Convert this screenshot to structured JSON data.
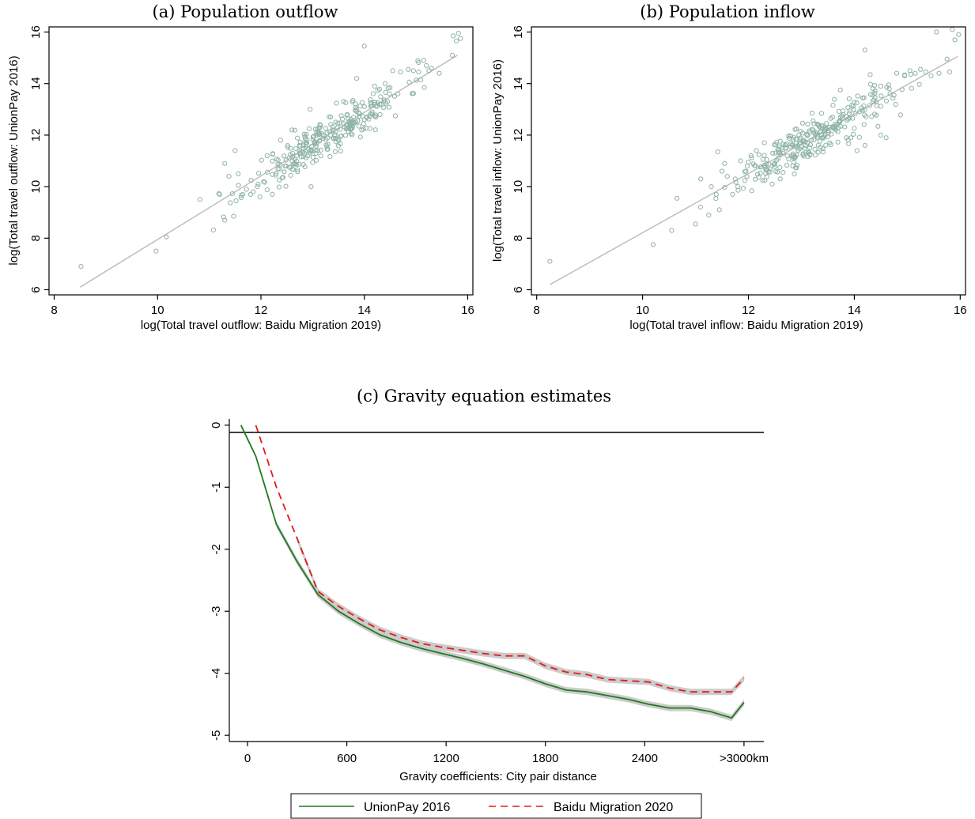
{
  "chart_data": [
    {
      "type": "scatter",
      "title": "(a) Population outflow",
      "xlabel": "log(Total travel outflow: Baidu Migration 2019)",
      "ylabel": "log(Total travel outflow: UnionPay 2016)",
      "xlim": [
        7.9,
        16.1
      ],
      "ylim": [
        5.8,
        16.2
      ],
      "xticks": [
        8,
        10,
        12,
        14,
        16
      ],
      "yticks": [
        6,
        8,
        10,
        12,
        14,
        16
      ],
      "point_color": "#8fb3a8",
      "fit_color": "#bbbbbb",
      "fit_line": {
        "x": [
          8.5,
          15.8
        ],
        "y": [
          6.1,
          15.1
        ]
      },
      "seed": 11,
      "cluster": {
        "x_center": 13.3,
        "x_spread": 0.75,
        "slope": 1.23,
        "intercept": -4.38,
        "noise": 0.6,
        "count": 280
      },
      "points": [
        [
          8.52,
          6.9
        ],
        [
          9.97,
          7.5
        ],
        [
          10.17,
          8.05
        ],
        [
          10.82,
          9.5
        ],
        [
          11.08,
          8.32
        ],
        [
          11.2,
          9.7
        ],
        [
          11.3,
          8.7
        ],
        [
          11.38,
          10.4
        ],
        [
          11.47,
          8.85
        ],
        [
          11.5,
          11.4
        ],
        [
          11.52,
          9.45
        ],
        [
          11.56,
          10.5
        ],
        [
          11.3,
          10.9
        ],
        [
          11.72,
          9.9
        ],
        [
          11.85,
          9.8
        ],
        [
          11.93,
          10.0
        ],
        [
          11.98,
          9.6
        ],
        [
          12.05,
          10.2
        ],
        [
          12.12,
          11.2
        ],
        [
          12.22,
          9.7
        ],
        [
          12.38,
          11.8
        ],
        [
          12.97,
          10.0
        ],
        [
          14.0,
          12.6
        ],
        [
          14.05,
          12.7
        ],
        [
          14.15,
          12.9
        ],
        [
          14.3,
          13.2
        ],
        [
          14.45,
          13.3
        ],
        [
          14.6,
          12.75
        ],
        [
          14.0,
          15.45
        ],
        [
          14.55,
          14.5
        ],
        [
          14.7,
          14.45
        ],
        [
          14.85,
          14.55
        ],
        [
          14.95,
          14.5
        ],
        [
          15.05,
          14.45
        ],
        [
          15.15,
          14.9
        ],
        [
          15.25,
          14.5
        ],
        [
          15.3,
          14.6
        ],
        [
          15.45,
          14.4
        ],
        [
          15.7,
          15.1
        ],
        [
          15.72,
          15.85
        ],
        [
          15.78,
          15.65
        ],
        [
          15.82,
          15.95
        ],
        [
          15.86,
          15.75
        ],
        [
          15.2,
          14.7
        ],
        [
          14.4,
          14.0
        ],
        [
          14.2,
          13.9
        ],
        [
          13.85,
          14.2
        ],
        [
          13.6,
          13.3
        ],
        [
          12.95,
          13.0
        ],
        [
          12.6,
          12.2
        ],
        [
          13.1,
          11.4
        ],
        [
          14.65,
          13.6
        ]
      ]
    },
    {
      "type": "scatter",
      "title": "(b) Population inflow",
      "xlabel": "log(Total travel inflow: Baidu Migration 2019)",
      "ylabel": "log(Total travel inflow: UnionPay 2016)",
      "xlim": [
        7.9,
        16.1
      ],
      "ylim": [
        5.8,
        16.2
      ],
      "xticks": [
        8,
        10,
        12,
        14,
        16
      ],
      "yticks": [
        6,
        8,
        10,
        12,
        14,
        16
      ],
      "point_color": "#8fb3a8",
      "fit_color": "#bbbbbb",
      "fit_line": {
        "x": [
          8.25,
          15.95
        ],
        "y": [
          6.2,
          15.05
        ]
      },
      "seed": 29,
      "cluster": {
        "x_center": 13.1,
        "x_spread": 0.75,
        "slope": 1.15,
        "intercept": -3.3,
        "noise": 0.6,
        "count": 280
      },
      "points": [
        [
          8.25,
          7.1
        ],
        [
          10.2,
          7.75
        ],
        [
          10.55,
          8.3
        ],
        [
          10.65,
          9.55
        ],
        [
          11.0,
          8.55
        ],
        [
          11.1,
          10.3
        ],
        [
          11.25,
          8.9
        ],
        [
          11.3,
          10.0
        ],
        [
          11.42,
          11.35
        ],
        [
          11.45,
          9.1
        ],
        [
          11.5,
          10.6
        ],
        [
          11.55,
          10.9
        ],
        [
          11.6,
          10.4
        ],
        [
          11.7,
          9.7
        ],
        [
          11.75,
          10.3
        ],
        [
          11.8,
          10.0
        ],
        [
          11.85,
          11.0
        ],
        [
          11.95,
          10.6
        ],
        [
          12.05,
          11.2
        ],
        [
          12.15,
          11.4
        ],
        [
          12.3,
          11.7
        ],
        [
          12.45,
          10.1
        ],
        [
          12.6,
          10.3
        ],
        [
          14.35,
          13.8
        ],
        [
          14.5,
          13.9
        ],
        [
          14.65,
          13.95
        ],
        [
          14.8,
          14.4
        ],
        [
          14.95,
          14.3
        ],
        [
          15.05,
          14.5
        ],
        [
          15.15,
          14.4
        ],
        [
          15.25,
          14.55
        ],
        [
          15.35,
          14.45
        ],
        [
          15.45,
          14.3
        ],
        [
          15.55,
          16.0
        ],
        [
          15.6,
          14.4
        ],
        [
          15.75,
          14.95
        ],
        [
          15.8,
          14.45
        ],
        [
          15.85,
          16.1
        ],
        [
          15.9,
          15.7
        ],
        [
          15.97,
          15.9
        ],
        [
          14.2,
          15.3
        ],
        [
          14.3,
          14.35
        ],
        [
          14.5,
          12.0
        ],
        [
          14.6,
          11.9
        ],
        [
          14.75,
          13.55
        ],
        [
          14.2,
          11.6
        ],
        [
          14.05,
          11.4
        ],
        [
          13.85,
          11.9
        ],
        [
          13.65,
          12.2
        ]
      ]
    },
    {
      "type": "line",
      "title": "(c) Gravity equation estimates",
      "xlabel": "Gravity coefficients: City pair distance",
      "ylabel": "",
      "xlim": [
        -110,
        3120
      ],
      "ylim": [
        -5.1,
        0.1
      ],
      "xticks": [
        0,
        600,
        1200,
        1800,
        2400
      ],
      "xtick_labels": [
        "0",
        "600",
        "1200",
        "1800",
        "2400"
      ],
      "extra_xtick_label": {
        "x": 3000,
        "label": ">3000km"
      },
      "yticks": [
        0,
        -1,
        -2,
        -3,
        -4,
        -5
      ],
      "ytick_labels": [
        "0",
        "-1",
        "-2",
        "-3",
        "-4",
        "-5"
      ],
      "x": [
        -40,
        50,
        175,
        300,
        425,
        550,
        675,
        800,
        925,
        1050,
        1175,
        1300,
        1425,
        1550,
        1675,
        1800,
        1925,
        2050,
        2175,
        2300,
        2425,
        2550,
        2675,
        2800,
        2925,
        3000
      ],
      "ci_color": "#cccccc",
      "series": [
        {
          "name": "UnionPay 2016",
          "color": "#1f7a1f",
          "dash": "",
          "values": [
            0.0,
            -0.5,
            -1.6,
            -2.2,
            -2.73,
            -3.0,
            -3.2,
            -3.38,
            -3.5,
            -3.6,
            -3.68,
            -3.76,
            -3.85,
            -3.95,
            -4.05,
            -4.17,
            -4.27,
            -4.3,
            -4.36,
            -4.42,
            -4.5,
            -4.56,
            -4.56,
            -4.62,
            -4.72,
            -4.47
          ],
          "ci": 0.05
        },
        {
          "name": "Baidu Migration 2020",
          "color": "#e31a1c",
          "dash": "9,6",
          "values": [
            null,
            0.0,
            -1.0,
            -1.83,
            -2.68,
            -2.92,
            -3.12,
            -3.3,
            -3.42,
            -3.52,
            -3.58,
            -3.63,
            -3.68,
            -3.72,
            -3.72,
            -3.88,
            -3.98,
            -4.02,
            -4.1,
            -4.12,
            -4.14,
            -4.24,
            -4.3,
            -4.3,
            -4.3,
            -4.08
          ],
          "ci": 0.05
        }
      ],
      "legend_position": "bottom"
    }
  ]
}
